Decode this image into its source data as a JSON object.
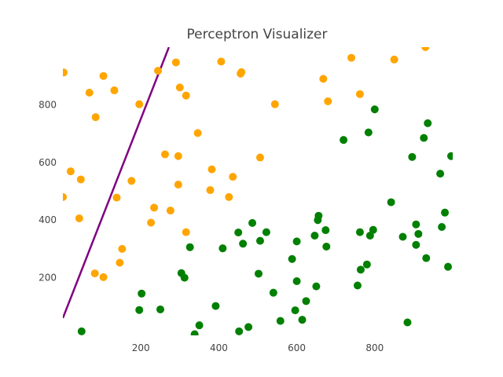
{
  "chart_data": {
    "type": "scatter",
    "title": "Perceptron Visualizer",
    "xlabel": "",
    "ylabel": "",
    "xlim": [
      0,
      1000
    ],
    "ylim": [
      0,
      1000
    ],
    "xticks": [
      "200",
      "400",
      "600",
      "800"
    ],
    "yticks": [
      "200",
      "400",
      "600",
      "800"
    ],
    "grid": false,
    "legend": "none",
    "colors": {
      "class_a": "#FFA500",
      "class_b": "#008000",
      "boundary": "#800080",
      "text": "#444444"
    },
    "boundary": {
      "x": [
        0,
        272
      ],
      "y": [
        60,
        1000
      ]
    },
    "series": [
      {
        "values": [
          [
            2,
            912
          ],
          [
            68,
            842
          ],
          [
            104,
            900
          ],
          [
            132,
            850
          ],
          [
            84,
            757
          ],
          [
            20,
            569
          ],
          [
            46,
            541
          ],
          [
            0,
            480
          ],
          [
            42,
            406
          ],
          [
            82,
            215
          ],
          [
            104,
            202
          ],
          [
            138,
            478
          ],
          [
            176,
            536
          ],
          [
            196,
            802
          ],
          [
            226,
            391
          ],
          [
            234,
            443
          ],
          [
            244,
            918
          ],
          [
            262,
            628
          ],
          [
            276,
            433
          ],
          [
            290,
            947
          ],
          [
            296,
            622
          ],
          [
            296,
            523
          ],
          [
            300,
            860
          ],
          [
            316,
            832
          ],
          [
            316,
            358
          ],
          [
            346,
            702
          ],
          [
            378,
            504
          ],
          [
            382,
            576
          ],
          [
            406,
            950
          ],
          [
            426,
            480
          ],
          [
            436,
            550
          ],
          [
            456,
            908
          ],
          [
            458,
            913
          ],
          [
            544,
            802
          ],
          [
            506,
            617
          ],
          [
            668,
            890
          ],
          [
            680,
            812
          ],
          [
            740,
            963
          ],
          [
            762,
            837
          ],
          [
            850,
            957
          ],
          [
            930,
            1000
          ],
          [
            152,
            300
          ],
          [
            146,
            252
          ]
        ]
      },
      {
        "values": [
          [
            48,
            14
          ],
          [
            196,
            88
          ],
          [
            202,
            145
          ],
          [
            250,
            90
          ],
          [
            304,
            216
          ],
          [
            312,
            200
          ],
          [
            326,
            306
          ],
          [
            338,
            4
          ],
          [
            350,
            35
          ],
          [
            392,
            102
          ],
          [
            410,
            302
          ],
          [
            450,
            357
          ],
          [
            452,
            14
          ],
          [
            462,
            318
          ],
          [
            476,
            29
          ],
          [
            486,
            390
          ],
          [
            502,
            214
          ],
          [
            506,
            328
          ],
          [
            522,
            358
          ],
          [
            540,
            148
          ],
          [
            558,
            50
          ],
          [
            588,
            265
          ],
          [
            596,
            87
          ],
          [
            600,
            326
          ],
          [
            600,
            188
          ],
          [
            614,
            54
          ],
          [
            624,
            119
          ],
          [
            646,
            346
          ],
          [
            650,
            170
          ],
          [
            654,
            400
          ],
          [
            656,
            415
          ],
          [
            674,
            365
          ],
          [
            676,
            308
          ],
          [
            720,
            678
          ],
          [
            756,
            173
          ],
          [
            762,
            358
          ],
          [
            764,
            228
          ],
          [
            780,
            246
          ],
          [
            784,
            704
          ],
          [
            788,
            346
          ],
          [
            796,
            366
          ],
          [
            800,
            784
          ],
          [
            842,
            462
          ],
          [
            872,
            342
          ],
          [
            884,
            45
          ],
          [
            896,
            619
          ],
          [
            906,
            385
          ],
          [
            906,
            314
          ],
          [
            912,
            352
          ],
          [
            926,
            685
          ],
          [
            932,
            268
          ],
          [
            936,
            736
          ],
          [
            968,
            561
          ],
          [
            972,
            376
          ],
          [
            980,
            426
          ],
          [
            988,
            238
          ],
          [
            996,
            622
          ]
        ]
      }
    ]
  }
}
